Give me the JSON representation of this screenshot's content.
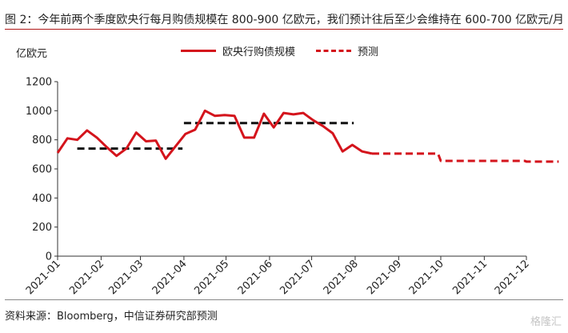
{
  "header": {
    "title": "图 2：今年前两个季度欧央行每月购债规模在 800-900 亿欧元，我们预计往后至少会维持在 600-700 亿欧元/月"
  },
  "footer": {
    "source": "资料来源：Bloomberg，中信证券研究部预测",
    "watermark": "格隆汇"
  },
  "chart_data": {
    "type": "line",
    "ylabel": "亿欧元",
    "ylim": [
      0,
      1200
    ],
    "yticks": [
      "0",
      "200",
      "400",
      "600",
      "800",
      "1000",
      "1200"
    ],
    "xticks": [
      "2021-01",
      "2021-02",
      "2021-03",
      "2021-04",
      "2021-05",
      "2021-06",
      "2021-07",
      "2021-08",
      "2021-09",
      "2021-10",
      "2021-11",
      "2021-12"
    ],
    "colors": {
      "line": "#d4141c",
      "avg": "#111111"
    },
    "series": [
      {
        "name": "欧央行购债规模",
        "style": "solid",
        "x": [
          "2021-01-01",
          "2021-01-08",
          "2021-01-15",
          "2021-01-22",
          "2021-01-29",
          "2021-02-05",
          "2021-02-12",
          "2021-02-19",
          "2021-02-26",
          "2021-03-05",
          "2021-03-12",
          "2021-03-19",
          "2021-03-26",
          "2021-04-02",
          "2021-04-09",
          "2021-04-16",
          "2021-04-23",
          "2021-04-30",
          "2021-05-07",
          "2021-05-14",
          "2021-05-21",
          "2021-05-28",
          "2021-06-04",
          "2021-06-11",
          "2021-06-18",
          "2021-06-25",
          "2021-07-02",
          "2021-07-09",
          "2021-07-16",
          "2021-07-23",
          "2021-07-30",
          "2021-08-06",
          "2021-08-13"
        ],
        "y": [
          710,
          810,
          800,
          865,
          815,
          750,
          690,
          740,
          850,
          790,
          795,
          670,
          755,
          840,
          870,
          1000,
          965,
          970,
          965,
          815,
          815,
          980,
          885,
          985,
          975,
          985,
          935,
          895,
          845,
          720,
          765,
          720,
          705
        ]
      },
      {
        "name": "预测",
        "style": "dashed",
        "x": [
          "2021-08-13",
          "2021-09-29",
          "2021-10-01",
          "2021-11-30",
          "2021-12-01",
          "2021-12-24"
        ],
        "y": [
          705,
          705,
          655,
          655,
          650,
          650
        ]
      }
    ],
    "averages": [
      {
        "x": [
          "2021-01-15",
          "2021-03-31"
        ],
        "y": [
          740,
          740
        ]
      },
      {
        "x": [
          "2021-04-01",
          "2021-07-31"
        ],
        "y": [
          915,
          915
        ]
      }
    ],
    "legend": [
      {
        "label": "欧央行购债规模",
        "style": "solid"
      },
      {
        "label": "预测",
        "style": "dashed"
      }
    ],
    "legend_position": "top-center",
    "grid": false
  }
}
